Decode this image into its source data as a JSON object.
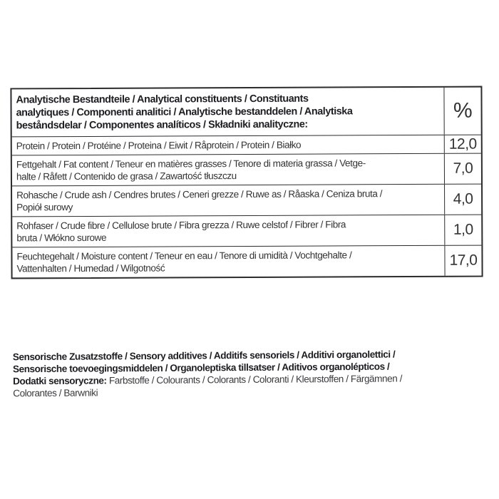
{
  "table": {
    "header": {
      "lines": [
        "Analytische Bestandteile / Analytical constituents / Constituants",
        "analytiques / Componenti analitici / Analytische bestanddelen / Analytiska",
        "beståndsdelar / Componentes analíticos / Składniki analityczne:"
      ],
      "unit": "%"
    },
    "rows": [
      {
        "lines": [
          "Protein / Protein / Protéine / Proteina / Eiwit / Råprotein / Protein / Białko"
        ],
        "value": "12,0"
      },
      {
        "lines": [
          "Fettgehalt / Fat content / Teneur en matières grasses / Tenore di materia grassa / Vetge-",
          "halte / Råfett / Contenido de grasa / Zawartość tłuszczu"
        ],
        "value": "7,0"
      },
      {
        "lines": [
          "Rohasche / Crude ash / Cendres brutes / Ceneri grezze / Ruwe as / Råaska / Ceniza bruta /",
          "Popiół surowy"
        ],
        "value": "4,0"
      },
      {
        "lines": [
          "Rohfaser / Crude fibre / Cellulose brute / Fibra grezza / Ruwe celstof / Fibrer / Fibra",
          "bruta / Włókno surowe"
        ],
        "value": "1,0"
      },
      {
        "lines": [
          "Feuchtegehalt / Moisture content / Teneur en eau / Tenore di umidità / Vochtgehalte /",
          "Vattenhalten / Humedad / Wilgotność"
        ],
        "value": "17,0"
      }
    ]
  },
  "footer": {
    "line1": "Sensorische Zusatzstoffe / Sensory additives / Additifs sensoriels / Additivi organolettici /",
    "line2": "Sensorische toevoegingsmiddelen / Organoleptiska tillsatser /  Aditivos organolépticos /",
    "line3_bold": "Dodatki sensoryczne: ",
    "line3_rest": "Farbstoffe / Colourants / Colorants / Coloranti / Kleurstoffen / Färgämnen /",
    "line4": "Colorantes / Barwniki"
  }
}
